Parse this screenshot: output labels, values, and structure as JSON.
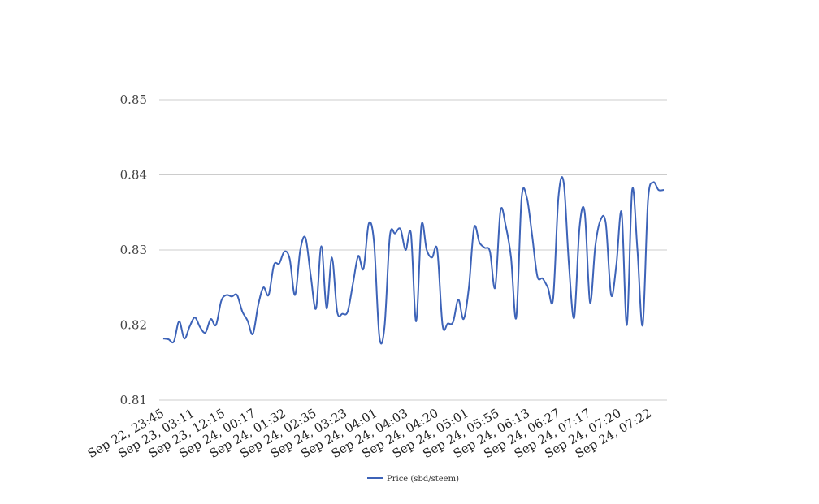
{
  "chart_data": {
    "type": "line",
    "title": "",
    "xlabel": "",
    "ylabel": "",
    "ylim": [
      0.81,
      0.85
    ],
    "y_ticks": [
      "0.81",
      "0.82",
      "0.83",
      "0.84",
      "0.85"
    ],
    "y_tick_values": [
      0.81,
      0.82,
      0.83,
      0.84,
      0.85
    ],
    "x_tick_labels": [
      "Sep 22, 23:45",
      "Sep 23, 03:11",
      "Sep 23, 12:15",
      "Sep 24, 00:17",
      "Sep 24, 01:32",
      "Sep 24, 02:35",
      "Sep 24, 03:23",
      "Sep 24, 04:01",
      "Sep 24, 04:03",
      "Sep 24, 04:20",
      "Sep 24, 05:01",
      "Sep 24, 05:55",
      "Sep 24, 06:13",
      "Sep 24, 06:27",
      "Sep 24, 07:17",
      "Sep 24, 07:20",
      "Sep 24, 07:22"
    ],
    "grid": true,
    "legend_position": "bottom",
    "series": [
      {
        "name": "Price (sbd/steem)",
        "color": "#3d63b8",
        "values": [
          0.8182,
          0.8181,
          0.8178,
          0.8205,
          0.8182,
          0.8198,
          0.821,
          0.8197,
          0.819,
          0.8208,
          0.82,
          0.8232,
          0.824,
          0.8238,
          0.824,
          0.8218,
          0.8206,
          0.8188,
          0.8226,
          0.825,
          0.824,
          0.828,
          0.8282,
          0.8298,
          0.8288,
          0.824,
          0.83,
          0.8316,
          0.8265,
          0.8222,
          0.8305,
          0.8222,
          0.829,
          0.8218,
          0.8215,
          0.8218,
          0.8255,
          0.8292,
          0.8275,
          0.8335,
          0.831,
          0.8185,
          0.8198,
          0.8318,
          0.8322,
          0.8328,
          0.83,
          0.8322,
          0.8205,
          0.8333,
          0.83,
          0.829,
          0.83,
          0.82,
          0.8202,
          0.8204,
          0.8234,
          0.8208,
          0.825,
          0.833,
          0.831,
          0.8303,
          0.8298,
          0.825,
          0.8352,
          0.8332,
          0.829,
          0.821,
          0.8368,
          0.837,
          0.832,
          0.8265,
          0.8262,
          0.825,
          0.8235,
          0.837,
          0.839,
          0.828,
          0.821,
          0.833,
          0.835,
          0.823,
          0.8305,
          0.834,
          0.8335,
          0.824,
          0.828,
          0.835,
          0.82,
          0.838,
          0.83,
          0.82,
          0.8365,
          0.839,
          0.838,
          0.838
        ]
      }
    ]
  }
}
